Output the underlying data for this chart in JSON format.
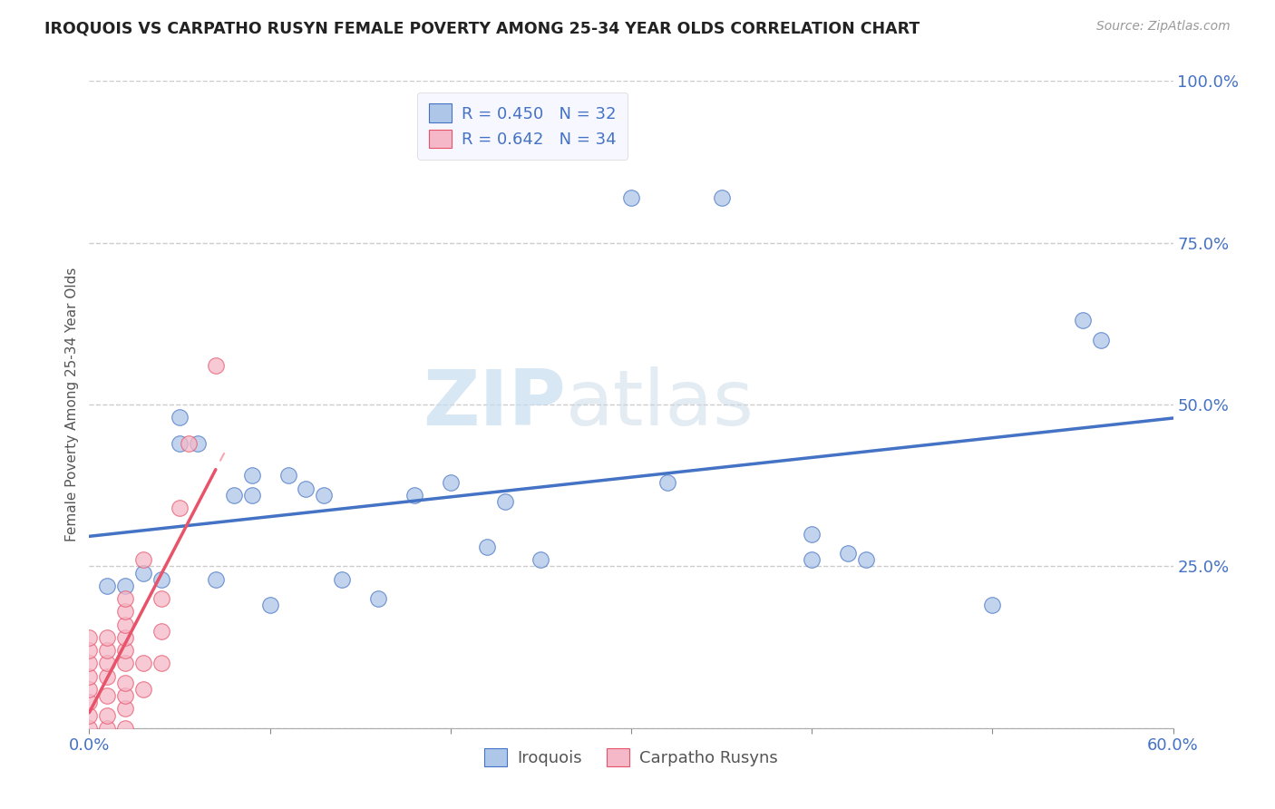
{
  "title": "IROQUOIS VS CARPATHO RUSYN FEMALE POVERTY AMONG 25-34 YEAR OLDS CORRELATION CHART",
  "source": "Source: ZipAtlas.com",
  "ylabel": "Female Poverty Among 25-34 Year Olds",
  "xlim": [
    0.0,
    0.6
  ],
  "ylim": [
    0.0,
    1.0
  ],
  "xticks": [
    0.0,
    0.1,
    0.2,
    0.3,
    0.4,
    0.5,
    0.6
  ],
  "xticklabels": [
    "0.0%",
    "",
    "",
    "",
    "",
    "",
    "60.0%"
  ],
  "yticks": [
    0.0,
    0.25,
    0.5,
    0.75,
    1.0
  ],
  "yticklabels": [
    "",
    "25.0%",
    "50.0%",
    "75.0%",
    "100.0%"
  ],
  "iroquois_R": 0.45,
  "iroquois_N": 32,
  "carpatho_R": 0.642,
  "carpatho_N": 34,
  "iroquois_color": "#aec6e8",
  "iroquois_line_color": "#4472c4",
  "carpatho_color": "#f4b8c8",
  "carpatho_line_color": "#e8536a",
  "iroquois_scatter_x": [
    0.01,
    0.02,
    0.03,
    0.04,
    0.05,
    0.05,
    0.06,
    0.07,
    0.08,
    0.09,
    0.09,
    0.1,
    0.11,
    0.12,
    0.13,
    0.14,
    0.16,
    0.18,
    0.2,
    0.22,
    0.23,
    0.25,
    0.3,
    0.32,
    0.35,
    0.4,
    0.4,
    0.42,
    0.43,
    0.5,
    0.55,
    0.56
  ],
  "iroquois_scatter_y": [
    0.22,
    0.22,
    0.24,
    0.23,
    0.44,
    0.48,
    0.44,
    0.23,
    0.36,
    0.36,
    0.39,
    0.19,
    0.39,
    0.37,
    0.36,
    0.23,
    0.2,
    0.36,
    0.38,
    0.28,
    0.35,
    0.26,
    0.82,
    0.38,
    0.82,
    0.3,
    0.26,
    0.27,
    0.26,
    0.19,
    0.63,
    0.6
  ],
  "carpatho_scatter_x": [
    0.0,
    0.0,
    0.0,
    0.0,
    0.0,
    0.0,
    0.0,
    0.0,
    0.01,
    0.01,
    0.01,
    0.01,
    0.01,
    0.01,
    0.01,
    0.02,
    0.02,
    0.02,
    0.02,
    0.02,
    0.02,
    0.02,
    0.02,
    0.02,
    0.02,
    0.03,
    0.03,
    0.03,
    0.04,
    0.04,
    0.04,
    0.05,
    0.055,
    0.07
  ],
  "carpatho_scatter_y": [
    0.0,
    0.02,
    0.04,
    0.06,
    0.08,
    0.1,
    0.12,
    0.14,
    0.0,
    0.02,
    0.05,
    0.08,
    0.1,
    0.12,
    0.14,
    0.0,
    0.03,
    0.05,
    0.07,
    0.1,
    0.12,
    0.14,
    0.16,
    0.18,
    0.2,
    0.06,
    0.1,
    0.26,
    0.1,
    0.15,
    0.2,
    0.34,
    0.44,
    0.56
  ],
  "watermark_zip": "ZIP",
  "watermark_atlas": "atlas",
  "background_color": "#ffffff",
  "grid_color": "#cccccc",
  "legend_bg": "#f5f5ff",
  "legend_edge": "#cccccc"
}
